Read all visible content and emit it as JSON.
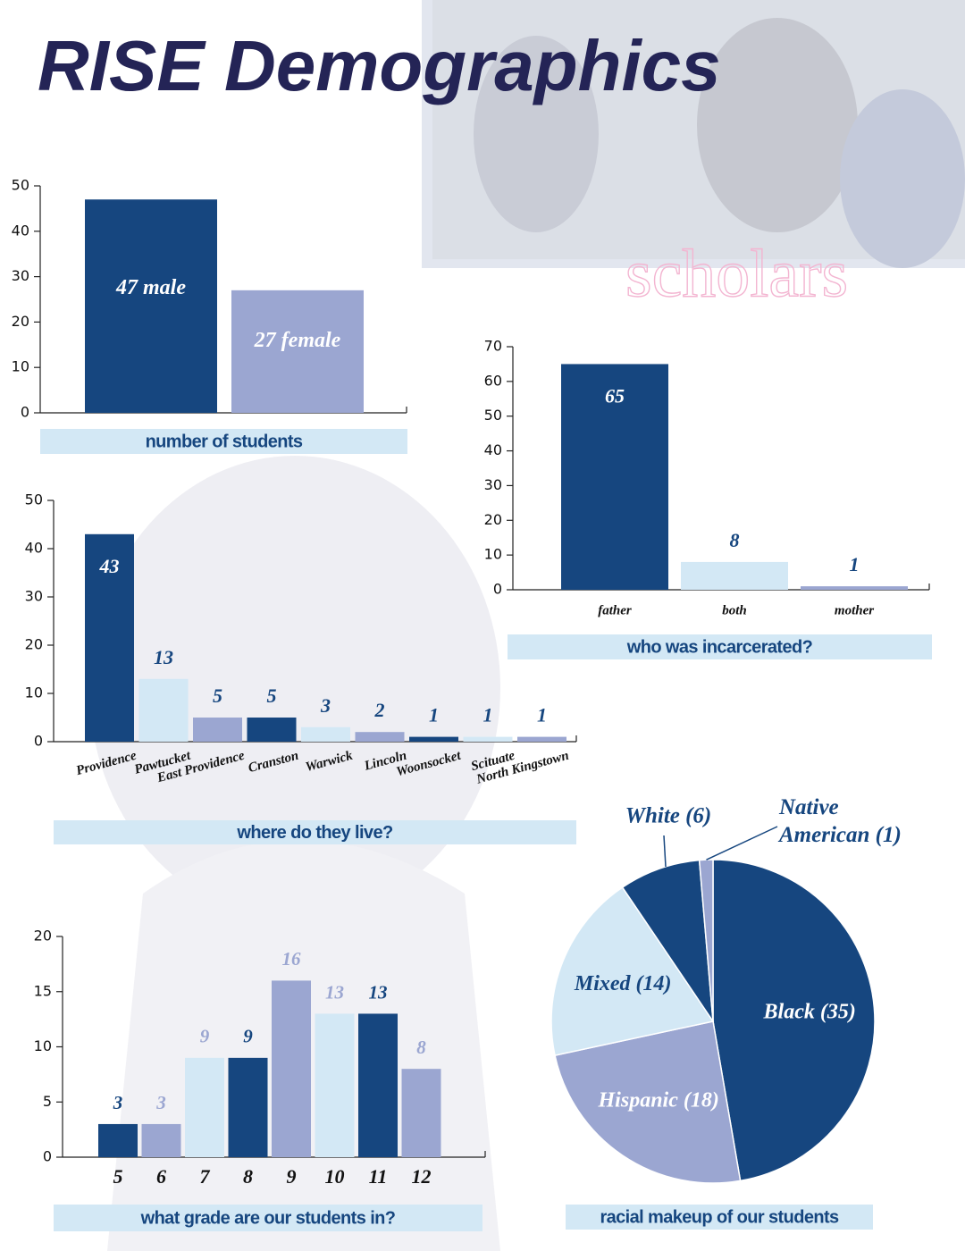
{
  "title": "RISE Demographics",
  "photo_caption": "scholars",
  "chart_data": [
    {
      "type": "bar",
      "title": "number of students",
      "values": [
        47,
        27
      ],
      "value_labels": [
        "47 male",
        "27 female"
      ],
      "colors": [
        "#16467f",
        "#9ba6d1"
      ],
      "ylim": [
        0,
        50
      ],
      "yticks": [
        0,
        10,
        20,
        30,
        40,
        50
      ]
    },
    {
      "type": "bar",
      "title": "who was incarcerated?",
      "categories": [
        "father",
        "both",
        "mother"
      ],
      "values": [
        65,
        8,
        1
      ],
      "colors": [
        "#16467f",
        "#d3e8f5",
        "#9ba6d1"
      ],
      "ylim": [
        0,
        70
      ],
      "yticks": [
        0,
        10,
        20,
        30,
        40,
        50,
        60,
        70
      ]
    },
    {
      "type": "bar",
      "title": "where do they live?",
      "categories": [
        "Providence",
        "Pawtucket",
        "East Providence",
        "Cranston",
        "Warwick",
        "Lincoln",
        "Woonsocket",
        "Scituate",
        "North Kingstown"
      ],
      "values": [
        43,
        13,
        5,
        5,
        3,
        2,
        1,
        1,
        1
      ],
      "colors": [
        "#16467f",
        "#d3e8f5",
        "#9ba6d1",
        "#16467f",
        "#d3e8f5",
        "#9ba6d1",
        "#16467f",
        "#d3e8f5",
        "#9ba6d1"
      ],
      "ylim": [
        0,
        50
      ],
      "yticks": [
        0,
        10,
        20,
        30,
        40,
        50
      ]
    },
    {
      "type": "bar",
      "title": "what grade are our students in?",
      "categories": [
        "5",
        "6",
        "7",
        "8",
        "9",
        "10",
        "11",
        "12"
      ],
      "values": [
        3,
        3,
        9,
        9,
        16,
        13,
        13,
        8
      ],
      "colors": [
        "#16467f",
        "#9ba6d1",
        "#d3e8f5",
        "#16467f",
        "#9ba6d1",
        "#d3e8f5",
        "#16467f",
        "#9ba6d1"
      ],
      "ylim": [
        0,
        20
      ],
      "yticks": [
        0,
        5,
        10,
        15,
        20
      ]
    },
    {
      "type": "pie",
      "title": "racial makeup of our students",
      "values": [
        35,
        18,
        14,
        6,
        1
      ],
      "value_labels": [
        "Black (35)",
        "Hispanic (18)",
        "Mixed (14)",
        "White (6)",
        "Native American (1)"
      ],
      "colors": [
        "#16467f",
        "#9ba6d1",
        "#d3e8f5",
        "#16467f",
        "#9ba6d1"
      ]
    }
  ]
}
